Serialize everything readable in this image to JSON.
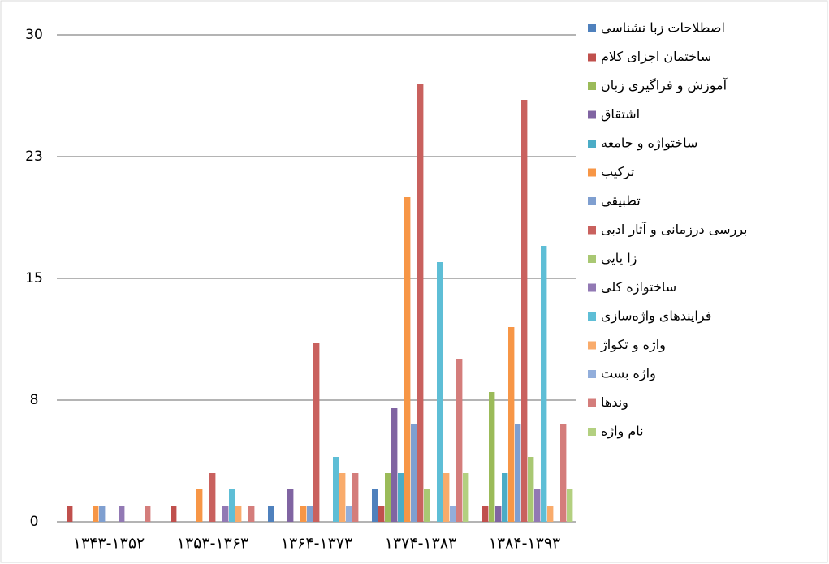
{
  "chart_data": {
    "type": "bar",
    "categories": [
      "۱۳۴۳-۱۳۵۲",
      "۱۳۵۳-۱۳۶۳",
      "۱۳۶۴-۱۳۷۳",
      "۱۳۷۴-۱۳۸۳",
      "۱۳۸۴-۱۳۹۳"
    ],
    "series": [
      {
        "name": "اصطلاحات زبا نشناسی",
        "color": "#4f81bd",
        "values": [
          0,
          0,
          1,
          2,
          0
        ]
      },
      {
        "name": "ساختمان اجزای کلام",
        "color": "#c0504d",
        "values": [
          1,
          1,
          0,
          1,
          1
        ]
      },
      {
        "name": "آموزش و فراگیری زبان",
        "color": "#9bbb59",
        "values": [
          0,
          0,
          0,
          3,
          8
        ]
      },
      {
        "name": "اشتقاق",
        "color": "#8064a2",
        "values": [
          0,
          0,
          2,
          7,
          1
        ]
      },
      {
        "name": "ساختواژه و جامعه",
        "color": "#4bacc6",
        "values": [
          0,
          0,
          0,
          3,
          3
        ]
      },
      {
        "name": "ترکیب",
        "color": "#f79646",
        "values": [
          1,
          2,
          1,
          20,
          12
        ]
      },
      {
        "name": "تطبیقی",
        "color": "#7f9fd0",
        "values": [
          1,
          0,
          1,
          6,
          6
        ]
      },
      {
        "name": "بررسی درزمانی و آثار ادبی",
        "color": "#c9615e",
        "values": [
          0,
          3,
          11,
          27,
          26
        ]
      },
      {
        "name": "زا یایی",
        "color": "#a9c873",
        "values": [
          0,
          0,
          0,
          2,
          4
        ]
      },
      {
        "name": "ساختواژه کلی",
        "color": "#9279b4",
        "values": [
          1,
          1,
          0,
          0,
          2
        ]
      },
      {
        "name": "فرایندهای واژه‌سازی",
        "color": "#5ebed6",
        "values": [
          0,
          2,
          4,
          16,
          17
        ]
      },
      {
        "name": "واژه و تکواژ",
        "color": "#f9ab6b",
        "values": [
          0,
          1,
          3,
          3,
          1
        ]
      },
      {
        "name": "واژه بست",
        "color": "#92aedb",
        "values": [
          0,
          0,
          1,
          1,
          0
        ]
      },
      {
        "name": "وندها",
        "color": "#d47d7b",
        "values": [
          1,
          1,
          3,
          10,
          6
        ]
      },
      {
        "name": "نام واژه",
        "color": "#b3d080",
        "values": [
          0,
          0,
          0,
          3,
          2
        ]
      }
    ],
    "ylim": [
      0,
      30
    ],
    "yticks": [
      0,
      {
        "value": 7.5,
        "label": "8"
      },
      15,
      {
        "value": 22.5,
        "label": "23"
      },
      30
    ],
    "grid": true,
    "legend": "right"
  }
}
